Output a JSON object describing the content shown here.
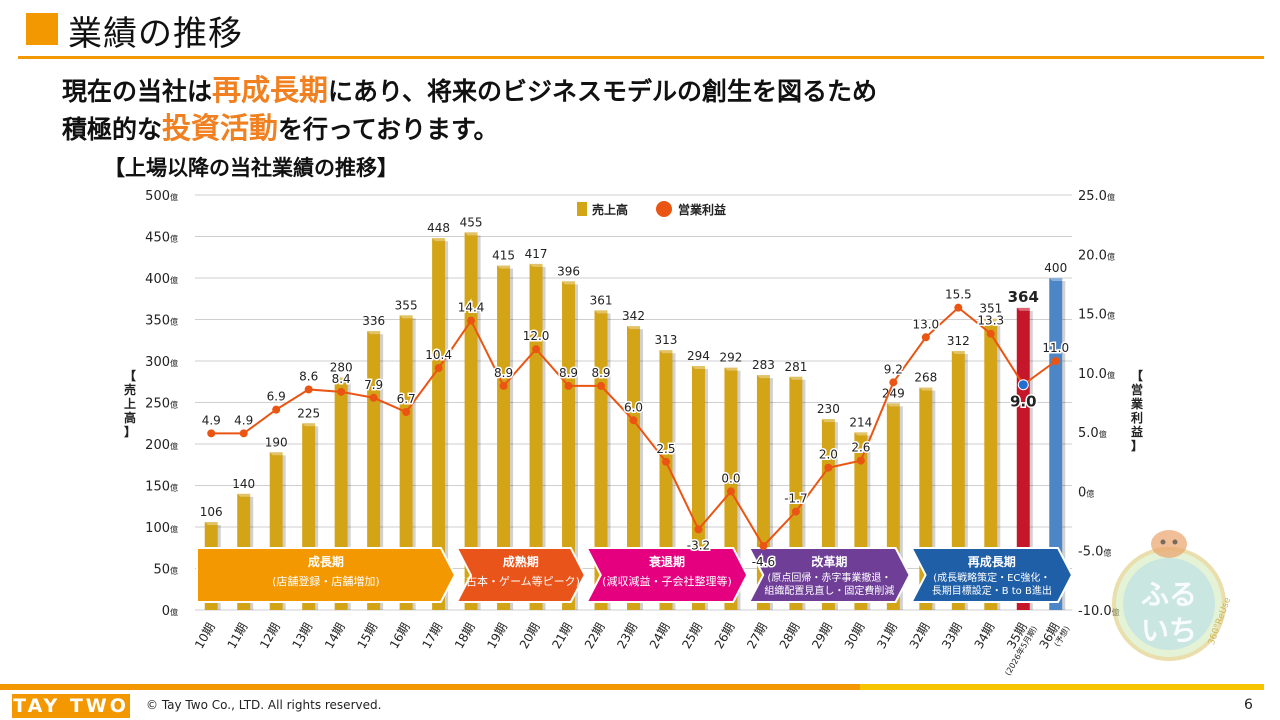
{
  "header": {
    "title": "業績の推移",
    "headline_line1": [
      {
        "text": "現在の当社は",
        "highlight": false
      },
      {
        "text": "再成長期",
        "highlight": true
      },
      {
        "text": "にあり、将来のビジネスモデルの創生を図るため",
        "highlight": false
      }
    ],
    "headline_line2": [
      {
        "text": "積極的な",
        "highlight": false
      },
      {
        "text": "投資活動",
        "highlight": true
      },
      {
        "text": "を行っております。",
        "highlight": false
      }
    ],
    "chart_heading": "【上場以降の当社業績の推移】"
  },
  "footer": {
    "logo_text": "TAY TWO",
    "copyright": "© Tay Two Co., LTD. All rights reserved.",
    "page_number": "6"
  },
  "mascot": {
    "text1": "ふる",
    "text2": "いち",
    "ring_text": "360°ReUse"
  },
  "colors": {
    "accent": "#f39800",
    "bar": "#d4a417",
    "bar_actual_35": "#c5162a",
    "bar_forecast_36": "#4d86c6",
    "line": "#ea5514",
    "phase_growth": "#f39800",
    "phase_mature": "#e9541a",
    "phase_decline": "#e4007f",
    "phase_reform": "#6f3f98",
    "phase_regrowth": "#1f5fa8"
  },
  "chart_data": {
    "type": "bar",
    "categories": [
      "10期",
      "11期",
      "12期",
      "13期",
      "14期",
      "15期",
      "16期",
      "17期",
      "18期",
      "19期",
      "20期",
      "21期",
      "22期",
      "23期",
      "24期",
      "25期",
      "26期",
      "27期",
      "28期",
      "29期",
      "30期",
      "31期",
      "32期",
      "33期",
      "34期",
      "35期",
      "36期"
    ],
    "category_notes": {
      "35期": "(2026年5月期)",
      "36期": "(予想)"
    },
    "series": [
      {
        "name": "売上高",
        "type": "bar",
        "axis": "left",
        "values": [
          106,
          140,
          190,
          225,
          280,
          336,
          355,
          448,
          455,
          415,
          417,
          396,
          361,
          342,
          313,
          294,
          292,
          283,
          281,
          230,
          214,
          249,
          268,
          312,
          351,
          364,
          400
        ]
      },
      {
        "name": "営業利益",
        "type": "line",
        "axis": "right",
        "values": [
          4.9,
          4.9,
          6.9,
          8.6,
          8.4,
          7.9,
          6.7,
          10.4,
          14.4,
          8.9,
          12.0,
          8.9,
          8.9,
          6.0,
          2.5,
          -3.2,
          0.0,
          -4.6,
          -1.7,
          2.0,
          2.6,
          9.2,
          13.0,
          15.5,
          13.3,
          9.0,
          11.0
        ]
      }
    ],
    "bar_labels": [
      "106",
      "140",
      "190",
      "225",
      "280",
      "336",
      "355",
      "448",
      "455",
      "415",
      "417",
      "396",
      "361",
      "342",
      "313",
      "294",
      "292",
      "283",
      "281",
      "230",
      "214",
      "249",
      "268",
      "312",
      "351",
      "364",
      "400"
    ],
    "line_labels": [
      "4.9",
      "4.9",
      "6.9",
      "8.6",
      "8.4",
      "7.9",
      "6.7",
      "10.4",
      "14.4",
      "8.9",
      "12.0",
      "8.9",
      "8.9",
      "6.0",
      "2.5",
      "-3.2",
      "0.0",
      "-4.6",
      "-1.7",
      "2.0",
      "2.6",
      "9.2",
      "13.0",
      "15.5",
      "13.3",
      "9.0",
      "11.0"
    ],
    "ylabel_left": "【売上高】",
    "ylabel_right": "【営業利益】",
    "ylim_left": [
      0,
      500
    ],
    "ylim_right": [
      -10,
      25
    ],
    "left_ticks": [
      "0億",
      "50億",
      "100億",
      "150億",
      "200億",
      "250億",
      "300億",
      "350億",
      "400億",
      "450億",
      "500億"
    ],
    "right_ticks": [
      "-10.0億",
      "-5.0億",
      "0億",
      "5.0億",
      "10.0億",
      "15.0億",
      "20.0億",
      "25.0億"
    ],
    "legend": [
      "売上高",
      "営業利益"
    ],
    "legend_position": "top",
    "grid": true,
    "phases": [
      {
        "title": "成長期",
        "desc": "(店舗登録・店舗増加)",
        "start": 0,
        "end": 7
      },
      {
        "title": "成熟期",
        "desc": "(古本・ゲーム等ピーク)",
        "start": 8,
        "end": 11
      },
      {
        "title": "衰退期",
        "desc": "(減収減益・子会社整理等)",
        "start": 12,
        "end": 16
      },
      {
        "title": "改革期",
        "desc1": "(原点回帰・赤字事業撤退・",
        "desc2": "組織配置見直し・固定費削減",
        "start": 17,
        "end": 21
      },
      {
        "title": "再成長期",
        "desc1": "(成長戦略策定・EC強化・",
        "desc2": "長期目標設定・B to B進出",
        "start": 22,
        "end": 26
      }
    ]
  }
}
